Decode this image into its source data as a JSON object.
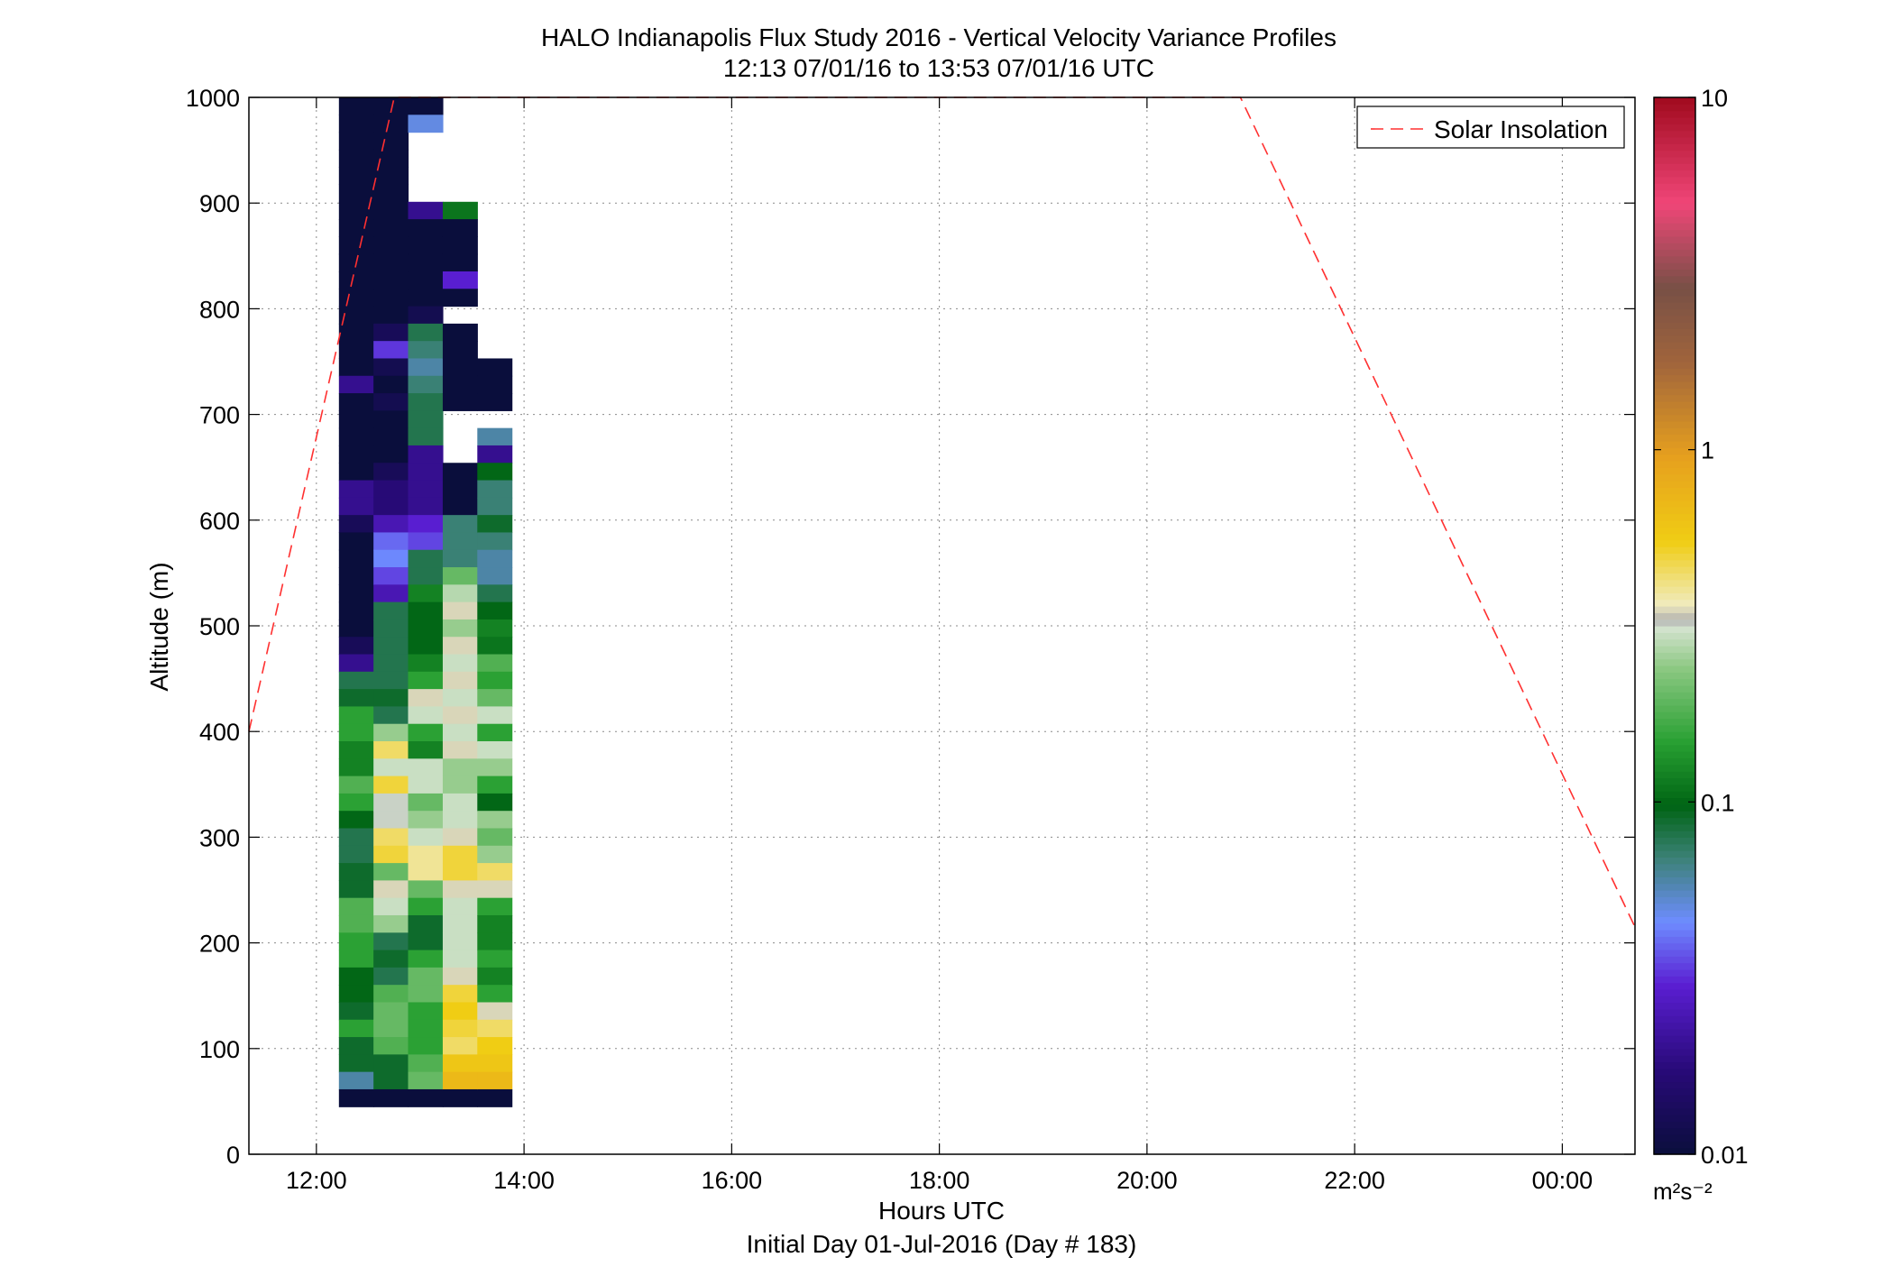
{
  "figure": {
    "title_line1": "HALO Indianapolis Flux Study 2016 - Vertical Velocity Variance Profiles",
    "title_line2": "12:13 07/01/16 to 13:53 07/01/16  UTC",
    "xlabel": "Hours UTC",
    "ylabel": "Altitude (m)",
    "footer": "Initial Day 01-Jul-2016 (Day # 183)",
    "legend_label": "Solar Insolation",
    "colorbar_unit": "m²s⁻²"
  },
  "chart_data": {
    "type": "heatmap",
    "title": "HALO Indianapolis Flux Study 2016 - Vertical Velocity Variance Profiles",
    "subtitle": "12:13 07/01/16 to 13:53 07/01/16  UTC",
    "xlabel": "Hours UTC",
    "ylabel": "Altitude (m)",
    "x_unit": "hours UTC (continuing past midnight)",
    "xlim": [
      11.35,
      24.7
    ],
    "ylim": [
      0,
      1000
    ],
    "x_ticks": [
      12,
      14,
      16,
      18,
      20,
      22,
      24
    ],
    "x_tick_labels": [
      "12:00",
      "14:00",
      "16:00",
      "18:00",
      "20:00",
      "22:00",
      "00:00"
    ],
    "y_ticks": [
      0,
      100,
      200,
      300,
      400,
      500,
      600,
      700,
      800,
      900,
      1000
    ],
    "y_tick_labels": [
      "0",
      "100",
      "200",
      "300",
      "400",
      "500",
      "600",
      "700",
      "800",
      "900",
      "1000"
    ],
    "grid": true,
    "legend_position": "top-right",
    "colorbar": {
      "label": "m²s⁻²",
      "scale": "log",
      "range": [
        0.01,
        10
      ],
      "ticks": [
        0.01,
        0.1,
        1,
        10
      ],
      "tick_labels": [
        "0.01",
        "0.1",
        "1",
        "10"
      ]
    },
    "columns": [
      {
        "time_start": 12.217,
        "time_end": 12.55
      },
      {
        "time_start": 12.55,
        "time_end": 12.883
      },
      {
        "time_start": 12.883,
        "time_end": 13.217
      },
      {
        "time_start": 13.217,
        "time_end": 13.55
      },
      {
        "time_start": 13.55,
        "time_end": 13.883
      }
    ],
    "altitude_bins": {
      "start": 45,
      "end": 1000,
      "count": 58
    },
    "values_note": "values in m2 s-2, listed from top altitude bin down; null = no data",
    "columns_values": [
      [
        0.01,
        0.01,
        0.01,
        0.01,
        0.01,
        0.01,
        0.01,
        0.01,
        0.01,
        0.01,
        0.01,
        0.01,
        0.01,
        0.01,
        0.01,
        0.01,
        0.02,
        0.01,
        0.01,
        0.01,
        0.01,
        0.01,
        0.02,
        0.02,
        0.013,
        0.01,
        0.01,
        0.01,
        0.01,
        0.01,
        0.01,
        0.013,
        0.02,
        0.08,
        0.09,
        0.15,
        0.15,
        0.12,
        0.12,
        0.18,
        0.15,
        0.1,
        0.08,
        0.08,
        0.09,
        0.09,
        0.18,
        0.18,
        0.15,
        0.15,
        0.1,
        0.1,
        0.09,
        0.15,
        0.09,
        0.09,
        0.06,
        0.01
      ],
      [
        0.01,
        0.01,
        0.01,
        0.01,
        0.01,
        0.01,
        0.01,
        0.01,
        0.01,
        0.01,
        0.01,
        0.01,
        0.01,
        0.013,
        0.033,
        0.012,
        0.01,
        0.012,
        0.01,
        0.01,
        0.01,
        0.013,
        0.017,
        0.017,
        0.025,
        0.04,
        0.045,
        0.035,
        0.025,
        0.08,
        0.08,
        0.08,
        0.08,
        0.08,
        0.09,
        0.08,
        0.25,
        0.45,
        0.3,
        0.5,
        0.32,
        0.32,
        0.45,
        0.5,
        0.2,
        0.35,
        0.3,
        0.25,
        0.08,
        0.09,
        0.08,
        0.18,
        0.2,
        0.2,
        0.18,
        0.09,
        0.09,
        0.01
      ],
      [
        0.01,
        0.05,
        null,
        null,
        null,
        null,
        0.02,
        0.01,
        0.01,
        0.01,
        0.01,
        0.01,
        0.012,
        0.08,
        0.07,
        0.06,
        0.07,
        0.08,
        0.08,
        0.08,
        0.02,
        0.02,
        0.02,
        0.02,
        0.03,
        0.035,
        0.08,
        0.08,
        0.12,
        0.1,
        0.1,
        0.1,
        0.12,
        0.15,
        0.35,
        0.3,
        0.15,
        0.12,
        0.3,
        0.3,
        0.2,
        0.25,
        0.3,
        0.4,
        0.4,
        0.2,
        0.15,
        0.09,
        0.09,
        0.15,
        0.2,
        0.2,
        0.15,
        0.15,
        0.15,
        0.18,
        0.2,
        0.01
      ],
      [
        null,
        null,
        null,
        null,
        null,
        null,
        0.11,
        0.01,
        0.01,
        0.01,
        0.03,
        0.01,
        null,
        0.01,
        0.01,
        0.01,
        0.01,
        0.01,
        null,
        null,
        null,
        0.01,
        0.01,
        0.01,
        0.07,
        0.07,
        0.07,
        0.2,
        0.28,
        0.35,
        0.25,
        0.35,
        0.3,
        0.35,
        0.3,
        0.35,
        0.3,
        0.35,
        0.25,
        0.25,
        0.3,
        0.3,
        0.35,
        0.5,
        0.5,
        0.35,
        0.3,
        0.3,
        0.3,
        0.3,
        0.35,
        0.5,
        0.55,
        0.5,
        0.45,
        0.6,
        0.7,
        0.01
      ],
      [
        null,
        null,
        null,
        null,
        null,
        null,
        null,
        null,
        null,
        null,
        null,
        null,
        null,
        null,
        null,
        0.01,
        0.01,
        0.01,
        null,
        0.06,
        0.02,
        0.1,
        0.07,
        0.07,
        0.09,
        0.07,
        0.06,
        0.06,
        0.08,
        0.1,
        0.12,
        0.11,
        0.18,
        0.15,
        0.2,
        0.3,
        0.15,
        0.3,
        0.25,
        0.15,
        0.1,
        0.25,
        0.2,
        0.25,
        0.45,
        0.35,
        0.15,
        0.12,
        0.12,
        0.15,
        0.12,
        0.15,
        0.35,
        0.45,
        0.55,
        0.6,
        0.7,
        0.01
      ]
    ],
    "series": [
      {
        "name": "Solar Insolation",
        "style": "red dashed line",
        "x": [
          11.35,
          12.75,
          20.9,
          24.7
        ],
        "y": [
          400,
          1000,
          1000,
          215
        ]
      }
    ]
  }
}
